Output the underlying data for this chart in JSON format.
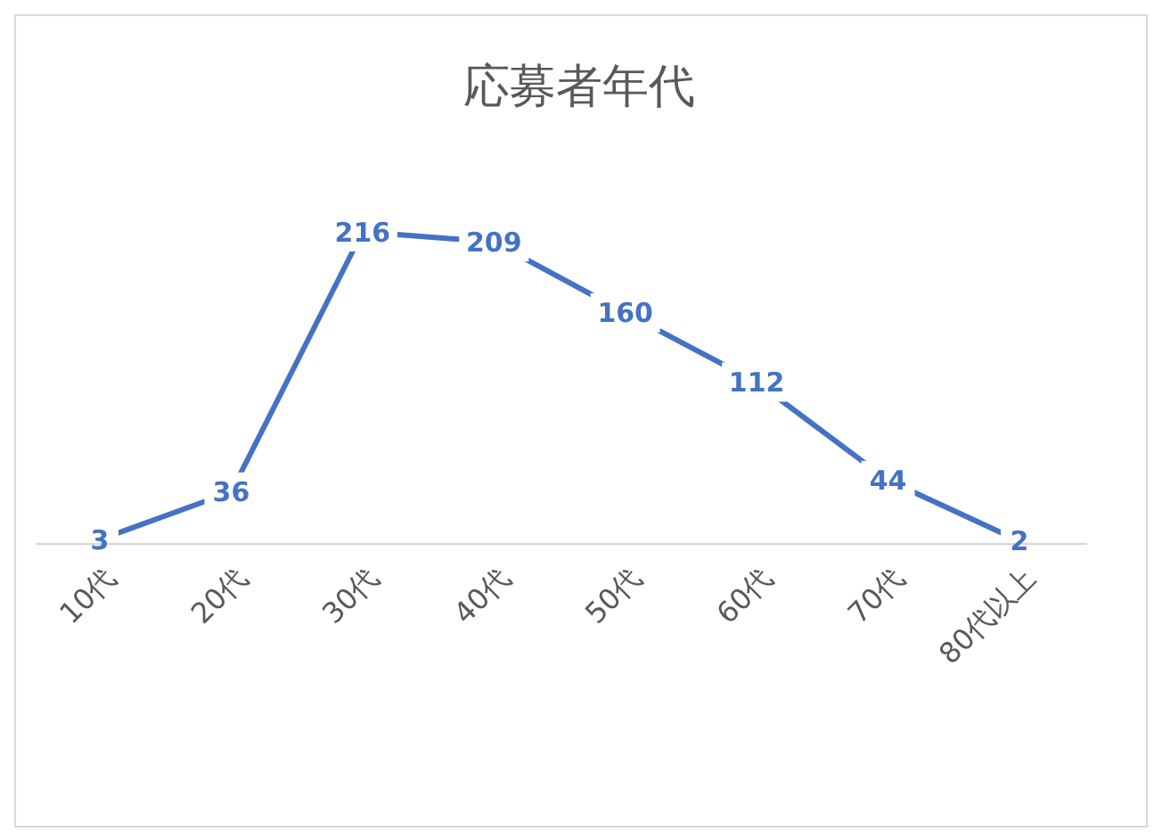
{
  "chart_data": {
    "type": "line",
    "title": "応募者年代",
    "categories": [
      "10代",
      "20代",
      "30代",
      "40代",
      "50代",
      "60代",
      "70代",
      "80代以上"
    ],
    "series": [
      {
        "color": "#4472c4",
        "values": [
          3,
          36,
          216,
          209,
          160,
          112,
          44,
          2
        ]
      }
    ],
    "data_labels": true,
    "line_style": "solid"
  }
}
